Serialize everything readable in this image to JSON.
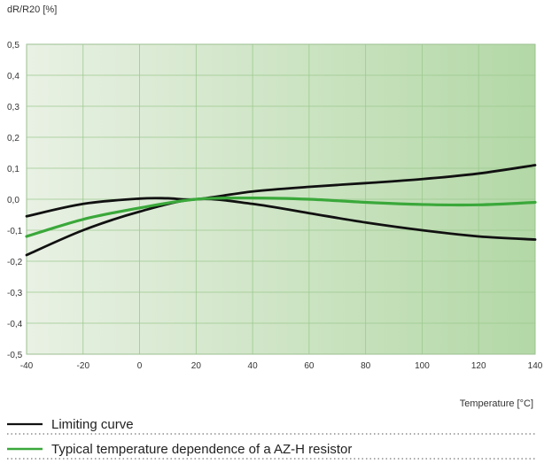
{
  "chart_data": {
    "type": "line",
    "xlabel": "Temperature [°C]",
    "ylabel": "dR/R20 [%]",
    "xlim": [
      -40,
      140
    ],
    "ylim": [
      -0.5,
      0.5
    ],
    "x_ticks": [
      -40,
      -20,
      0,
      20,
      40,
      60,
      80,
      100,
      120,
      140
    ],
    "y_ticks": [
      0.5,
      0.4,
      0.3,
      0.2,
      0.1,
      0.0,
      -0.1,
      -0.2,
      -0.3,
      -0.4,
      -0.5
    ],
    "x_tick_labels": [
      "-40",
      "-20",
      "0",
      "20",
      "40",
      "60",
      "80",
      "100",
      "120",
      "140"
    ],
    "y_tick_labels": [
      "0,5",
      "0,4",
      "0,3",
      "0,2",
      "0,1",
      "0,0",
      "-0,1",
      "-0,2",
      "-0,3",
      "-0,4",
      "-0,5"
    ],
    "grid": true,
    "legend_position": "bottom",
    "series": [
      {
        "name": "Limiting curve",
        "color": "#111111",
        "style": "solid",
        "x": [
          -40,
          -20,
          0,
          10,
          20,
          40,
          60,
          80,
          100,
          120,
          140
        ],
        "y": [
          -0.055,
          -0.015,
          0.002,
          0.003,
          0.0,
          0.025,
          0.04,
          0.052,
          0.065,
          0.083,
          0.11
        ]
      },
      {
        "name": "",
        "color": "#111111",
        "style": "solid",
        "x": [
          -40,
          -20,
          0,
          20,
          40,
          60,
          80,
          100,
          120,
          140
        ],
        "y": [
          -0.18,
          -0.1,
          -0.04,
          0.0,
          -0.015,
          -0.045,
          -0.075,
          -0.1,
          -0.12,
          -0.13
        ]
      },
      {
        "name": "Typical temperature dependence of a AZ-H resistor",
        "color": "#3aa83a",
        "style": "solid",
        "x": [
          -40,
          -20,
          0,
          20,
          40,
          60,
          80,
          100,
          120,
          140
        ],
        "y": [
          -0.12,
          -0.065,
          -0.028,
          0.0,
          0.004,
          0.0,
          -0.01,
          -0.017,
          -0.018,
          -0.01
        ]
      }
    ]
  }
}
